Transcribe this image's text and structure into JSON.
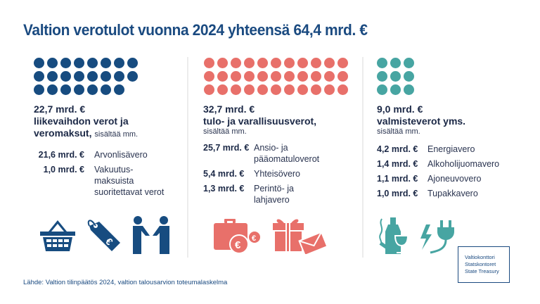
{
  "title": "Valtion verotulot vuonna 2024 yhteensä 64,4 mrd. €",
  "colors": {
    "blue": "#174c80",
    "red": "#e8706a",
    "teal": "#47a5a2",
    "divider": "#ececec",
    "text": "#1b2846"
  },
  "columns": [
    {
      "dots": 23,
      "dot_columns": 8,
      "color": "#174c80",
      "amount": "22,7 mrd. €",
      "category_lines": [
        "liikevaihdon verot ja",
        "veromaksut,"
      ],
      "includes": "sisältää mm.",
      "items": [
        {
          "amount": "21,6 mrd. €",
          "label": "Arvonlisävero"
        },
        {
          "amount": "1,0 mrd. €",
          "label": "Vakuutus-\nmaksuista\nsuoritettavat verot"
        }
      ],
      "icons": [
        "shopping-basket-icon",
        "euro-price-tag-icon",
        "handshake-icon"
      ]
    },
    {
      "dots": 33,
      "dot_columns": 11,
      "color": "#e8706a",
      "amount": "32,7 mrd. €",
      "category_lines": [
        "tulo- ja varallisuusverot,"
      ],
      "includes": "sisältää mm.",
      "items": [
        {
          "amount": "25,7 mrd. €",
          "label": "Ansio- ja\npääomatuloverot"
        },
        {
          "amount": "5,4 mrd. €",
          "label": "Yhteisövero"
        },
        {
          "amount": "1,3 mrd. €",
          "label": "Perintö- ja\nlahjavero"
        }
      ],
      "icons": [
        "briefcase-euro-icon",
        "gift-envelope-icon"
      ]
    },
    {
      "dots": 9,
      "dot_columns": 3,
      "color": "#47a5a2",
      "amount": "9,0 mrd. €",
      "category_lines": [
        "valmisteverot yms."
      ],
      "includes": "sisältää mm.",
      "items": [
        {
          "amount": "4,2 mrd. €",
          "label": "Energiavero"
        },
        {
          "amount": "1,4 mrd. €",
          "label": "Alkoholijuomavero"
        },
        {
          "amount": "1,1 mrd. €",
          "label": "Ajoneuvovero"
        },
        {
          "amount": "1,0 mrd. €",
          "label": "Tupakkavero"
        }
      ],
      "icons": [
        "bottle-wine-cigarette-icon",
        "electric-plug-icon"
      ]
    }
  ],
  "source": "Lähde: Valtion tilinpäätös 2024, valtion talousarvion toteumalaskelma",
  "logo": {
    "lines": [
      "Valtiokonttori",
      "Statskontoret",
      "State Treasury"
    ]
  }
}
